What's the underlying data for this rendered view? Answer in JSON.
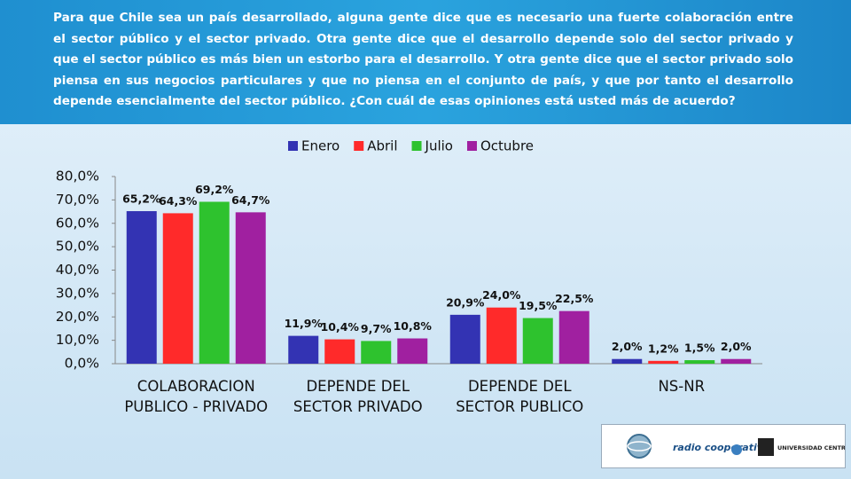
{
  "header": {
    "question": "Para que Chile sea un país desarrollado, alguna gente dice que es necesario una fuerte colaboración entre el sector público y el sector privado. Otra gente dice que el desarrollo depende solo del sector privado y que el sector público es más bien un estorbo para el desarrollo. Y otra gente dice que el sector privado solo piensa en sus negocios particulares y que no piensa en el conjunto de país, y que por tanto el desarrollo depende esencialmente del sector público. ¿Con cuál de esas opiniones está usted más de acuerdo?"
  },
  "chart_data": {
    "type": "bar",
    "categories": [
      "COLABORACION PUBLICO - PRIVADO",
      "DEPENDE DEL SECTOR PRIVADO",
      "DEPENDE DEL SECTOR PUBLICO",
      "NS-NR"
    ],
    "series": [
      {
        "name": "Enero",
        "color": "#3333b3",
        "values": [
          65.2,
          11.9,
          20.9,
          2.0
        ],
        "value_labels": [
          "65,2%",
          "11,9%",
          "20,9%",
          "2,0%"
        ]
      },
      {
        "name": "Abril",
        "color": "#ff2a2a",
        "values": [
          64.3,
          10.4,
          24.0,
          1.2
        ],
        "value_labels": [
          "64,3%",
          "10,4%",
          "24,0%",
          "1,2%"
        ]
      },
      {
        "name": "Julio",
        "color": "#2ec22e",
        "values": [
          69.2,
          9.7,
          19.5,
          1.5
        ],
        "value_labels": [
          "69,2%",
          "9,7%",
          "19,5%",
          "1,5%"
        ]
      },
      {
        "name": "Octubre",
        "color": "#a020a0",
        "values": [
          64.7,
          10.8,
          22.5,
          2.0
        ],
        "value_labels": [
          "64,7%",
          "10,8%",
          "22,5%",
          "2,0%"
        ]
      }
    ],
    "ylim": [
      0,
      80
    ],
    "yticks": [
      {
        "value": 0,
        "label": "0,0%"
      },
      {
        "value": 10,
        "label": "10,0%"
      },
      {
        "value": 20,
        "label": "20,0%"
      },
      {
        "value": 30,
        "label": "30,0%"
      },
      {
        "value": 40,
        "label": "40,0%"
      },
      {
        "value": 50,
        "label": "50,0%"
      },
      {
        "value": 60,
        "label": "60,0%"
      },
      {
        "value": 70,
        "label": "70,0%"
      },
      {
        "value": 80,
        "label": "80,0%"
      }
    ],
    "legend": "top"
  },
  "logos": [
    "radio cooperativa",
    "UNIVERSIDAD CENTRAL"
  ]
}
